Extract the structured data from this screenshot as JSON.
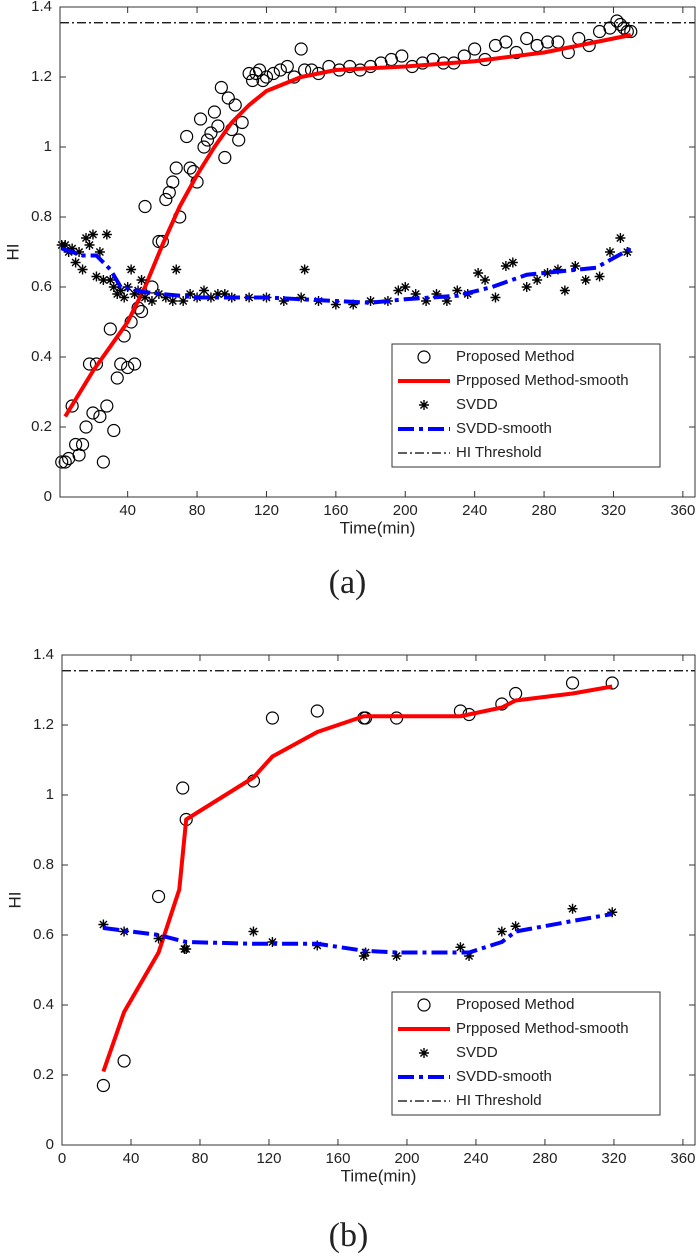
{
  "chart_data": [
    {
      "type": "line",
      "caption": "(a)",
      "x_label": "Time(min)",
      "y_label": "HI",
      "xlim": [
        1,
        367
      ],
      "ylim": [
        0,
        1.4
      ],
      "xticks": [
        40,
        80,
        120,
        160,
        200,
        240,
        280,
        320,
        360
      ],
      "yticks": [
        0,
        0.2,
        0.4,
        0.6,
        0.8,
        1,
        1.2,
        1.4
      ],
      "legend": "lower right",
      "series": [
        {
          "name": "Proposed Method",
          "color": "#000000",
          "marker": "circle",
          "x": [
            2,
            4,
            6,
            8,
            10,
            12,
            14,
            16,
            18,
            20,
            22,
            24,
            26,
            28,
            30,
            32,
            34,
            36,
            38,
            40,
            42,
            44,
            46,
            48,
            50,
            54,
            58,
            60,
            62,
            64,
            66,
            68,
            70,
            74,
            76,
            78,
            80,
            82,
            84,
            86,
            88,
            90,
            92,
            94,
            96,
            98,
            100,
            102,
            104,
            106,
            110,
            112,
            114,
            116,
            118,
            120,
            124,
            128,
            132,
            136,
            140,
            142,
            146,
            150,
            156,
            162,
            168,
            174,
            180,
            186,
            192,
            198,
            204,
            210,
            216,
            222,
            228,
            234,
            240,
            246,
            252,
            258,
            264,
            270,
            276,
            282,
            288,
            294,
            300,
            306,
            312,
            318,
            322,
            324,
            326,
            328,
            330
          ],
          "values": [
            0.1,
            0.1,
            0.11,
            0.26,
            0.15,
            0.12,
            0.15,
            0.2,
            0.38,
            0.24,
            0.38,
            0.23,
            0.1,
            0.26,
            0.48,
            0.19,
            0.34,
            0.38,
            0.46,
            0.37,
            0.5,
            0.38,
            0.54,
            0.53,
            0.83,
            0.6,
            0.73,
            0.73,
            0.85,
            0.87,
            0.9,
            0.94,
            0.8,
            1.03,
            0.94,
            0.93,
            0.9,
            1.08,
            1.0,
            1.02,
            1.04,
            1.1,
            1.06,
            1.17,
            0.97,
            1.14,
            1.05,
            1.12,
            1.02,
            1.07,
            1.21,
            1.19,
            1.21,
            1.22,
            1.19,
            1.2,
            1.21,
            1.22,
            1.23,
            1.2,
            1.28,
            1.22,
            1.22,
            1.21,
            1.23,
            1.22,
            1.23,
            1.22,
            1.23,
            1.24,
            1.25,
            1.26,
            1.23,
            1.24,
            1.25,
            1.24,
            1.24,
            1.26,
            1.28,
            1.25,
            1.29,
            1.3,
            1.27,
            1.31,
            1.29,
            1.3,
            1.3,
            1.27,
            1.31,
            1.29,
            1.33,
            1.34,
            1.36,
            1.35,
            1.34,
            1.33,
            1.33
          ]
        },
        {
          "name": "Prpposed Method-smooth",
          "color": "#ff0000",
          "line": "solid",
          "x": [
            4,
            20,
            40,
            50,
            60,
            70,
            80,
            90,
            100,
            110,
            120,
            140,
            160,
            200,
            240,
            280,
            330
          ],
          "values": [
            0.23,
            0.36,
            0.5,
            0.6,
            0.72,
            0.83,
            0.92,
            1.0,
            1.07,
            1.12,
            1.16,
            1.2,
            1.22,
            1.23,
            1.245,
            1.27,
            1.32
          ]
        },
        {
          "name": "SVDD",
          "color": "#000000",
          "marker": "star",
          "x": [
            2,
            4,
            6,
            8,
            10,
            12,
            14,
            16,
            18,
            20,
            22,
            24,
            26,
            28,
            30,
            32,
            34,
            36,
            38,
            40,
            42,
            44,
            46,
            48,
            50,
            54,
            58,
            62,
            66,
            68,
            72,
            76,
            80,
            84,
            88,
            92,
            96,
            100,
            110,
            120,
            130,
            140,
            142,
            150,
            160,
            170,
            180,
            190,
            196,
            200,
            206,
            212,
            218,
            224,
            230,
            236,
            242,
            246,
            252,
            258,
            262,
            270,
            276,
            282,
            288,
            292,
            298,
            304,
            312,
            318,
            324,
            328
          ],
          "values": [
            0.72,
            0.72,
            0.7,
            0.71,
            0.67,
            0.7,
            0.65,
            0.74,
            0.72,
            0.75,
            0.63,
            0.7,
            0.62,
            0.75,
            0.62,
            0.6,
            0.58,
            0.59,
            0.57,
            0.6,
            0.65,
            0.58,
            0.59,
            0.62,
            0.57,
            0.56,
            0.58,
            0.57,
            0.56,
            0.65,
            0.56,
            0.58,
            0.57,
            0.59,
            0.57,
            0.58,
            0.58,
            0.57,
            0.57,
            0.57,
            0.56,
            0.57,
            0.65,
            0.56,
            0.55,
            0.55,
            0.56,
            0.56,
            0.59,
            0.6,
            0.58,
            0.56,
            0.58,
            0.56,
            0.59,
            0.58,
            0.64,
            0.62,
            0.57,
            0.66,
            0.67,
            0.6,
            0.62,
            0.64,
            0.65,
            0.59,
            0.66,
            0.62,
            0.63,
            0.7,
            0.74,
            0.7
          ]
        },
        {
          "name": "SVDD-smooth",
          "color": "#0000ff",
          "line": "dashdot",
          "x": [
            2,
            14,
            22,
            30,
            36,
            50,
            80,
            120,
            160,
            180,
            200,
            230,
            250,
            270,
            290,
            310,
            330
          ],
          "values": [
            0.71,
            0.69,
            0.69,
            0.65,
            0.6,
            0.585,
            0.57,
            0.57,
            0.56,
            0.555,
            0.565,
            0.575,
            0.6,
            0.635,
            0.645,
            0.655,
            0.71
          ]
        },
        {
          "name": "HI Threshold",
          "color": "#000000",
          "line": "dashdot-thin",
          "hline": 1.355
        }
      ]
    },
    {
      "type": "line",
      "caption": "(b)",
      "x_label": "Time(min)",
      "y_label": "HI",
      "xlim": [
        0,
        367
      ],
      "ylim": [
        0,
        1.4
      ],
      "xticks": [
        0,
        40,
        80,
        120,
        160,
        200,
        240,
        280,
        320,
        360
      ],
      "yticks": [
        0,
        0.2,
        0.4,
        0.6,
        0.8,
        1,
        1.2,
        1.4
      ],
      "legend": "lower right",
      "series": [
        {
          "name": "Proposed Method",
          "color": "#000000",
          "marker": "circle",
          "x": [
            24,
            36,
            56,
            70,
            72,
            111,
            122,
            148,
            175,
            176,
            194,
            231,
            236,
            255,
            263,
            296,
            319
          ],
          "values": [
            0.17,
            0.24,
            0.71,
            1.02,
            0.93,
            1.04,
            1.22,
            1.24,
            1.22,
            1.22,
            1.22,
            1.24,
            1.23,
            1.26,
            1.29,
            1.32,
            1.32
          ]
        },
        {
          "name": "Prpposed Method-smooth",
          "color": "#ff0000",
          "line": "solid",
          "x": [
            24,
            36,
            56,
            68,
            72,
            111,
            122,
            148,
            175,
            194,
            231,
            255,
            263,
            296,
            319
          ],
          "values": [
            0.21,
            0.38,
            0.55,
            0.73,
            0.93,
            1.05,
            1.11,
            1.18,
            1.225,
            1.225,
            1.225,
            1.25,
            1.27,
            1.29,
            1.31
          ]
        },
        {
          "name": "SVDD",
          "color": "#000000",
          "marker": "star",
          "x": [
            24,
            36,
            56,
            71,
            72,
            111,
            122,
            148,
            175,
            176,
            194,
            231,
            236,
            255,
            263,
            296,
            319
          ],
          "values": [
            0.63,
            0.61,
            0.59,
            0.56,
            0.56,
            0.61,
            0.58,
            0.57,
            0.54,
            0.55,
            0.54,
            0.565,
            0.54,
            0.61,
            0.625,
            0.675,
            0.665
          ]
        },
        {
          "name": "SVDD-smooth",
          "color": "#0000ff",
          "line": "dashdot",
          "x": [
            24,
            56,
            72,
            111,
            148,
            175,
            194,
            236,
            255,
            263,
            296,
            319
          ],
          "values": [
            0.62,
            0.6,
            0.58,
            0.575,
            0.575,
            0.555,
            0.55,
            0.55,
            0.58,
            0.61,
            0.64,
            0.66
          ]
        },
        {
          "name": "HI Threshold",
          "color": "#000000",
          "line": "dashdot-thin",
          "hline": 1.355
        }
      ]
    }
  ]
}
